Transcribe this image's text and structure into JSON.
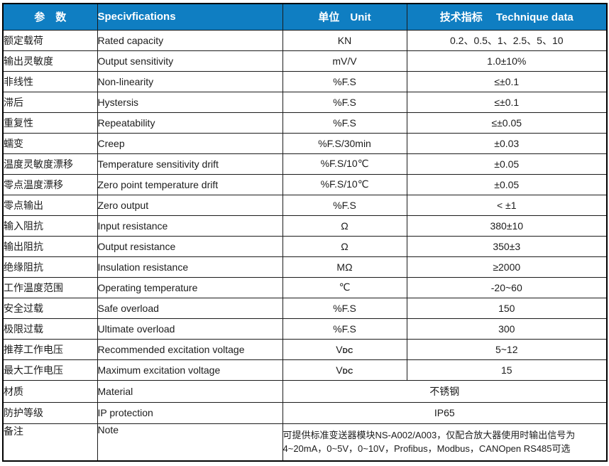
{
  "colors": {
    "header_bg": "#0f7ec2",
    "header_text": "#ffffff",
    "body_text": "#1c1c1c",
    "border": "#1b1b1b"
  },
  "table": {
    "header": {
      "param": "参　数",
      "spec": "Specivfications",
      "unit": "单位　Unit",
      "data": "技术指标　 Technique data"
    },
    "rows": [
      {
        "cn": "额定载荷",
        "en": "Rated capacity",
        "unit": "KN",
        "value": "0.2、0.5、1、2.5、5、10"
      },
      {
        "cn": "输出灵敏度",
        "en": "Output sensitivity",
        "unit": "mV/V",
        "value": "1.0±10%"
      },
      {
        "cn": "非线性",
        "en": "Non-linearity",
        "unit": "%F.S",
        "value": "≤±0.1"
      },
      {
        "cn": "滞后",
        "en": "Hystersis",
        "unit": "%F.S",
        "value": "≤±0.1"
      },
      {
        "cn": "重复性",
        "en": "Repeatability",
        "unit": "%F.S",
        "value": "≤±0.05"
      },
      {
        "cn": "蠕变",
        "en": "Creep",
        "unit": "%F.S/30min",
        "value": "±0.03"
      },
      {
        "cn": "温度灵敏度漂移",
        "en": "Temperature sensitivity drift",
        "unit": "%F.S/10℃",
        "value": "±0.05"
      },
      {
        "cn": "零点温度漂移",
        "en": "Zero point temperature drift",
        "unit": "%F.S/10℃",
        "value": "±0.05"
      },
      {
        "cn": "零点输出",
        "en": "Zero output",
        "unit": "%F.S",
        "value": "< ±1"
      },
      {
        "cn": "输入阻抗",
        "en": "Input resistance",
        "unit": "Ω",
        "value": "380±10"
      },
      {
        "cn": "输出阻抗",
        "en": "Output resistance",
        "unit": "Ω",
        "value": "350±3"
      },
      {
        "cn": "绝缘阻抗",
        "en": "Insulation resistance",
        "unit": "MΩ",
        "value": "≥2000"
      },
      {
        "cn": "工作温度范围",
        "en": "Operating temperature",
        "unit": "℃",
        "value": "-20~60"
      },
      {
        "cn": "安全过载",
        "en": "Safe overload",
        "unit": "%F.S",
        "value": "150"
      },
      {
        "cn": "极限过载",
        "en": "Ultimate overload",
        "unit": "%F.S",
        "value": "300"
      },
      {
        "cn": "推荐工作电压",
        "en": "Recommended excitation voltage",
        "unit": "V",
        "unit_suffix": "DC",
        "value": "5~12"
      },
      {
        "cn": "最大工作电压",
        "en": "Maximum excitation voltage",
        "unit": "V",
        "unit_suffix": "DC",
        "value": "15"
      }
    ],
    "merged_rows": [
      {
        "cn": "材质",
        "en": "Material",
        "value": "不锈钢",
        "row_class": "row-material"
      },
      {
        "cn": "防护等级",
        "en": "IP protection",
        "value": "IP65",
        "row_class": "row-ip"
      }
    ],
    "note_row": {
      "cn": "备注",
      "en": "Note",
      "lines": [
        "可提供标准变送器模块NS-A002/A003，仅配合放大器使用时输出信号为",
        "4~20mA，0~5V，0~10V，Profibus，Modbus，CANOpen RS485可选"
      ]
    }
  }
}
